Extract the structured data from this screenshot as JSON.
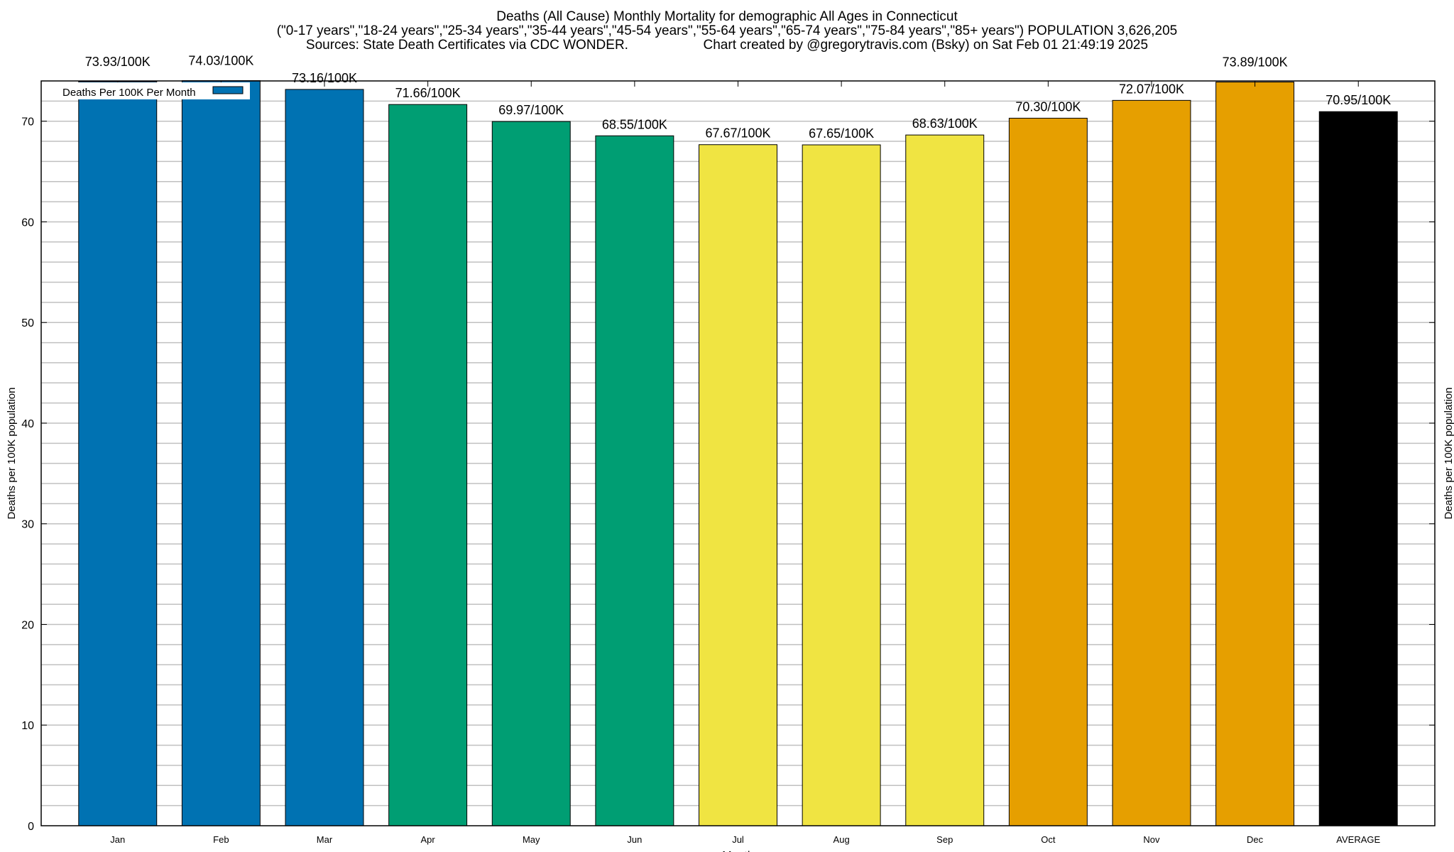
{
  "chart_data": {
    "type": "bar",
    "title": "Deaths (All Cause) Monthly Mortality for demographic All Ages in Connecticut",
    "subtitle": "(\"0-17 years\",\"18-24 years\",\"25-34 years\",\"35-44 years\",\"45-54 years\",\"55-64 years\",\"65-74 years\",\"75-84 years\",\"85+ years\") POPULATION 3,626,205",
    "source_left": "Sources: State Death Certificates via CDC WONDER.",
    "source_right": "Chart created by @gregorytravis.com (Bsky) on Sat Feb 01 21:49:19 2025",
    "xlabel": "Month",
    "ylabel": "Deaths per 100K population",
    "y2label": "Deaths per 100K population",
    "ylim": [
      0,
      74
    ],
    "yticks": [
      0,
      10,
      20,
      30,
      40,
      50,
      60,
      70
    ],
    "grid": true,
    "legend": {
      "label": "Deaths Per 100K Per Month",
      "placement": "top-left",
      "color": "#0072b2"
    },
    "categories": [
      "Jan",
      "Feb",
      "Mar",
      "Apr",
      "May",
      "Jun",
      "Jul",
      "Aug",
      "Sep",
      "Oct",
      "Nov",
      "Dec",
      "AVERAGE"
    ],
    "values": [
      73.93,
      74.03,
      73.16,
      71.66,
      69.97,
      68.55,
      67.67,
      67.65,
      68.63,
      70.3,
      72.07,
      73.89,
      70.95
    ],
    "data_labels": [
      "73.93/100K",
      "74.03/100K",
      "73.16/100K",
      "71.66/100K",
      "69.97/100K",
      "68.55/100K",
      "67.67/100K",
      "67.65/100K",
      "68.63/100K",
      "70.30/100K",
      "72.07/100K",
      "73.89/100K",
      "70.95/100K"
    ],
    "colors": [
      "#0072b2",
      "#0072b2",
      "#0072b2",
      "#009e73",
      "#009e73",
      "#009e73",
      "#f0e442",
      "#f0e442",
      "#f0e442",
      "#e69f00",
      "#e69f00",
      "#e69f00",
      "#000000"
    ]
  }
}
